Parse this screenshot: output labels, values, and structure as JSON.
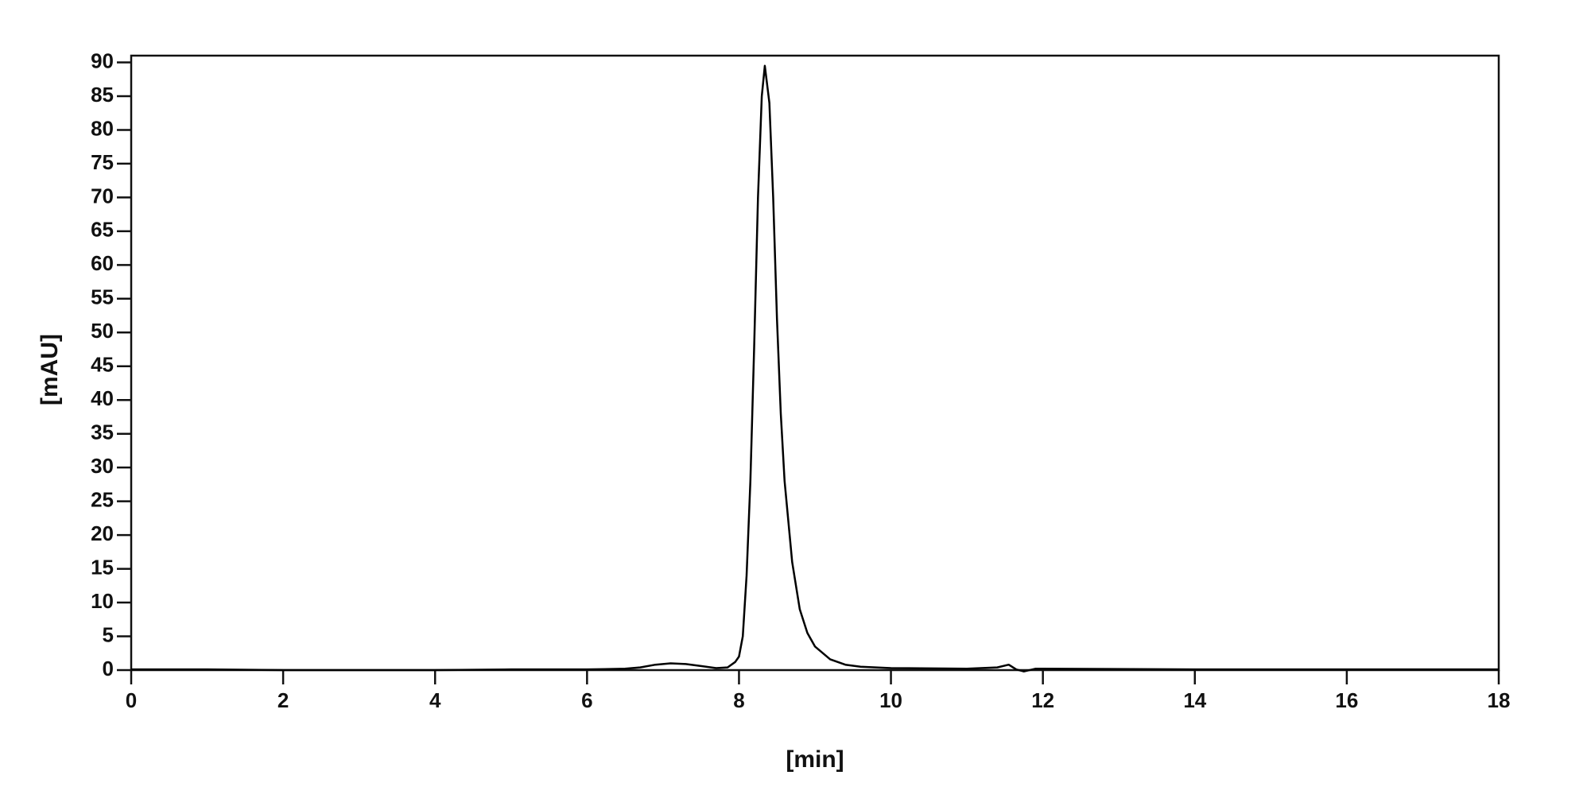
{
  "chart_data": {
    "type": "line",
    "xlabel": "[min]",
    "ylabel": "[mAU]",
    "x": [
      0,
      1,
      2,
      3,
      4,
      5,
      6,
      6.5,
      6.7,
      6.9,
      7.1,
      7.3,
      7.5,
      7.7,
      7.85,
      7.95,
      8.0,
      8.05,
      8.1,
      8.15,
      8.2,
      8.25,
      8.3,
      8.34,
      8.4,
      8.45,
      8.5,
      8.55,
      8.6,
      8.7,
      8.8,
      8.9,
      9.0,
      9.2,
      9.4,
      9.6,
      10,
      11,
      11.4,
      11.55,
      11.65,
      11.75,
      11.9,
      12,
      14,
      16,
      18
    ],
    "series": [
      {
        "color": "#000000",
        "values": [
          0.1,
          0.1,
          0,
          0,
          0,
          0.1,
          0.1,
          0.2,
          0.4,
          0.8,
          1.0,
          0.9,
          0.6,
          0.3,
          0.4,
          1.2,
          2,
          5,
          14,
          28,
          48,
          70,
          85,
          89.5,
          84,
          70,
          52,
          38,
          28,
          16,
          9,
          5.5,
          3.5,
          1.6,
          0.8,
          0.5,
          0.3,
          0.2,
          0.4,
          0.8,
          0.1,
          -0.2,
          0.2,
          0.2,
          0.1,
          0.1,
          0.1
        ]
      }
    ],
    "xlim": [
      0,
      18
    ],
    "xticks": [
      0,
      2,
      4,
      6,
      8,
      10,
      12,
      14,
      16,
      18
    ],
    "ylim": [
      0,
      91
    ],
    "yticks": [
      0,
      5,
      10,
      15,
      20,
      25,
      30,
      35,
      40,
      45,
      50,
      55,
      60,
      65,
      70,
      75,
      80,
      85,
      90
    ],
    "grid": false
  }
}
